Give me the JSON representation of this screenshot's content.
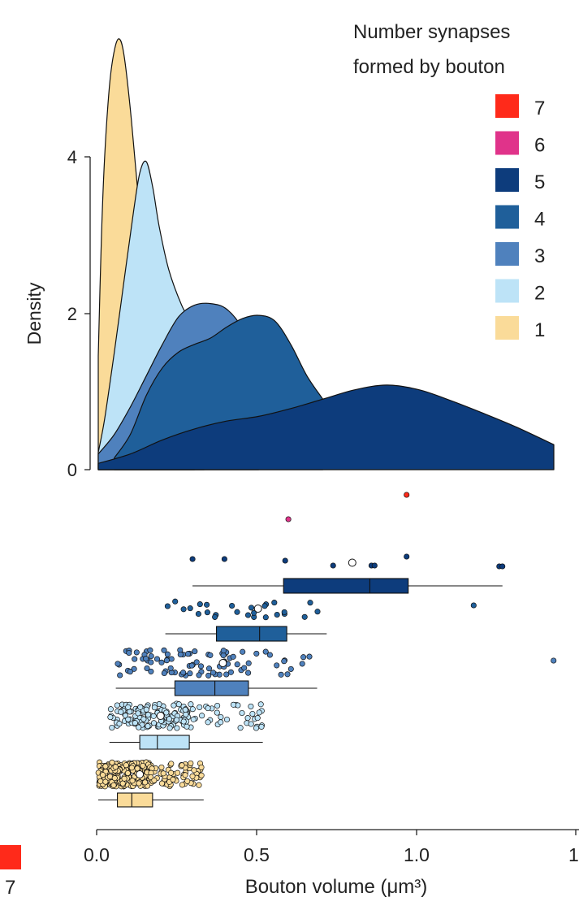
{
  "colors": {
    "1": "#fadb99",
    "2": "#bde3f7",
    "3": "#4f81bd",
    "4": "#1f5f9a",
    "5": "#0d3c7c",
    "6": "#e0338a",
    "7": "#ff2a1a"
  },
  "chart_data": [
    {
      "type": "area",
      "title": "",
      "xlabel": "",
      "ylabel": "Density",
      "ylim": [
        0,
        5.3
      ],
      "xlim": [
        0.0,
        1.42
      ],
      "yticks": [
        "0",
        "2",
        "4"
      ],
      "legend": {
        "title_line1": "Number synapses",
        "title_line2": "formed by bouton",
        "placement": "top-right",
        "items": [
          {
            "label": "7",
            "series": "7"
          },
          {
            "label": "6",
            "series": "6"
          },
          {
            "label": "5",
            "series": "5"
          },
          {
            "label": "4",
            "series": "4"
          },
          {
            "label": "3",
            "series": "3"
          },
          {
            "label": "2",
            "series": "2"
          },
          {
            "label": "1",
            "series": "1"
          }
        ]
      },
      "series": [
        {
          "name": "1",
          "x": [
            0.0,
            0.01,
            0.02,
            0.035,
            0.05,
            0.065,
            0.08,
            0.1,
            0.12,
            0.15,
            0.2,
            0.25,
            0.3
          ],
          "values": [
            1.45,
            3.0,
            4.0,
            4.9,
            5.35,
            5.5,
            5.3,
            4.6,
            3.7,
            2.2,
            0.9,
            0.35,
            0.1
          ]
        },
        {
          "name": "2",
          "x": [
            0.0,
            0.02,
            0.05,
            0.08,
            0.11,
            0.13,
            0.15,
            0.17,
            0.19,
            0.22,
            0.26,
            0.3,
            0.33
          ],
          "values": [
            0.22,
            0.65,
            1.5,
            2.4,
            3.3,
            3.8,
            3.93,
            3.6,
            3.1,
            2.55,
            2.1,
            1.8,
            1.6
          ]
        },
        {
          "name": "3",
          "x": [
            0.0,
            0.05,
            0.1,
            0.15,
            0.2,
            0.25,
            0.3,
            0.35,
            0.4,
            0.45,
            0.5
          ],
          "values": [
            0.2,
            0.45,
            0.8,
            1.2,
            1.6,
            1.95,
            2.1,
            2.12,
            2.05,
            1.8,
            1.35
          ]
        },
        {
          "name": "4",
          "x": [
            0.05,
            0.1,
            0.15,
            0.2,
            0.25,
            0.3,
            0.35,
            0.4,
            0.45,
            0.5,
            0.55,
            0.6,
            0.65,
            0.7
          ],
          "values": [
            0.15,
            0.45,
            0.95,
            1.3,
            1.5,
            1.6,
            1.68,
            1.82,
            1.93,
            1.97,
            1.9,
            1.6,
            1.2,
            0.9
          ]
        },
        {
          "name": "5",
          "x": [
            0.0,
            0.1,
            0.2,
            0.3,
            0.4,
            0.5,
            0.6,
            0.7,
            0.8,
            0.9,
            1.0,
            1.1,
            1.2,
            1.3,
            1.42
          ],
          "values": [
            0.08,
            0.2,
            0.38,
            0.52,
            0.62,
            0.68,
            0.78,
            0.9,
            1.02,
            1.08,
            1.02,
            0.88,
            0.72,
            0.55,
            0.32
          ]
        }
      ]
    },
    {
      "type": "scatter",
      "title": "",
      "xlabel": "Bouton volume (μm³)",
      "xlim": [
        0.0,
        1.5
      ],
      "xticks": [
        "0.0",
        "0.5",
        "1.0",
        "1.5"
      ],
      "boxplots": [
        {
          "series": "1",
          "whisker_low": 0.005,
          "q1": 0.065,
          "median": 0.11,
          "q3": 0.175,
          "whisker_high": 0.335,
          "mean": 0.135
        },
        {
          "series": "2",
          "whisker_low": 0.04,
          "q1": 0.135,
          "median": 0.19,
          "q3": 0.29,
          "whisker_high": 0.52,
          "mean": 0.2
        },
        {
          "series": "3",
          "whisker_low": 0.06,
          "q1": 0.245,
          "median": 0.37,
          "q3": 0.475,
          "whisker_high": 0.69,
          "mean": 0.395
        },
        {
          "series": "4",
          "whisker_low": 0.215,
          "q1": 0.375,
          "median": 0.51,
          "q3": 0.595,
          "whisker_high": 0.72,
          "mean": 0.505
        },
        {
          "series": "5",
          "whisker_low": 0.3,
          "q1": 0.585,
          "median": 0.855,
          "q3": 0.975,
          "whisker_high": 1.27,
          "mean": 0.8
        }
      ],
      "extra_points": [
        {
          "series": "7",
          "x": 0.97
        },
        {
          "series": "6",
          "x": 0.6
        },
        {
          "series": "5",
          "x": 0.3
        },
        {
          "series": "5",
          "x": 0.4
        },
        {
          "series": "5",
          "x": 0.59
        },
        {
          "series": "5",
          "x": 0.74
        },
        {
          "series": "5",
          "x": 0.86
        },
        {
          "series": "5",
          "x": 0.87
        },
        {
          "series": "5",
          "x": 0.97
        },
        {
          "series": "5",
          "x": 1.26
        },
        {
          "series": "5",
          "x": 1.27
        },
        {
          "series": "3",
          "x": 1.43
        },
        {
          "series": "4",
          "x": 1.18
        }
      ]
    }
  ],
  "cutoff_legend": {
    "label": "7",
    "series": "7"
  }
}
